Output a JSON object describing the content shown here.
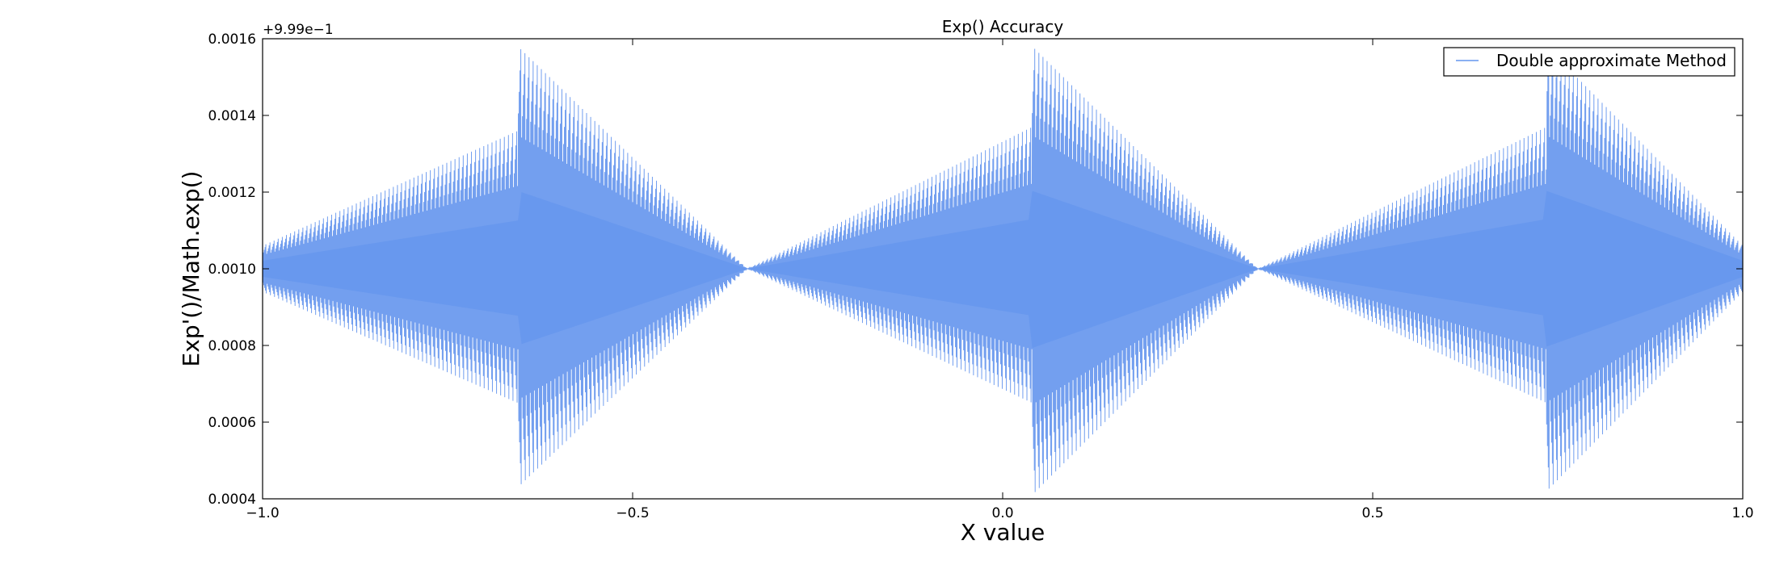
{
  "chart_data": {
    "type": "line",
    "title": "Exp() Accuracy",
    "xlabel": "X value",
    "ylabel": "Exp'()/Math.exp()",
    "y_offset_label": "+9.99e−1",
    "xlim": [
      -1.0,
      1.0
    ],
    "ylim": [
      0.0004,
      0.0016
    ],
    "x_ticks": [
      -1.0,
      -0.5,
      0.0,
      0.5,
      1.0
    ],
    "x_tick_labels": [
      "−1.0",
      "−0.5",
      "0.0",
      "0.5",
      "1.0"
    ],
    "y_ticks": [
      0.0004,
      0.0006,
      0.0008,
      0.001,
      0.0012,
      0.0014,
      0.0016
    ],
    "y_tick_labels": [
      "0.0004",
      "0.0006",
      "0.0008",
      "0.0010",
      "0.0012",
      "0.0014",
      "0.0016"
    ],
    "legend": {
      "location": "top-right",
      "entries": [
        "Double approximate Method"
      ]
    },
    "series": [
      {
        "name": "Double approximate Method",
        "color": "#6495ed",
        "baseline": 0.001,
        "description": "oscillating error envelope (center ± amplitude)",
        "envelope_x": [
          -1.0,
          -0.655,
          -0.655,
          -0.345,
          0.04,
          0.04,
          0.345,
          0.735,
          0.735,
          1.0
        ],
        "envelope_upper": [
          0.00106,
          0.00136,
          0.00158,
          0.001,
          0.00137,
          0.00158,
          0.001,
          0.00137,
          0.00158,
          0.00106
        ],
        "envelope_lower": [
          0.00094,
          0.00065,
          0.00043,
          0.001,
          0.00065,
          0.00041,
          0.001,
          0.00065,
          0.00042,
          0.00094
        ]
      }
    ]
  }
}
